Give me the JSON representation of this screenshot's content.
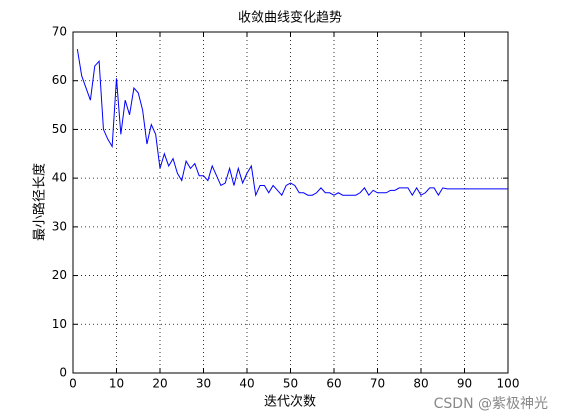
{
  "chart_data": {
    "type": "line",
    "title": "收敛曲线变化趋势",
    "xlabel": "迭代次数",
    "ylabel": "最小路径长度",
    "x": [
      1,
      2,
      3,
      4,
      5,
      6,
      7,
      8,
      9,
      10,
      11,
      12,
      13,
      14,
      15,
      16,
      17,
      18,
      19,
      20,
      21,
      22,
      23,
      24,
      25,
      26,
      27,
      28,
      29,
      30,
      31,
      32,
      33,
      34,
      35,
      36,
      37,
      38,
      39,
      40,
      41,
      42,
      43,
      44,
      45,
      46,
      47,
      48,
      49,
      50,
      51,
      52,
      53,
      54,
      55,
      56,
      57,
      58,
      59,
      60,
      61,
      62,
      63,
      64,
      65,
      66,
      67,
      68,
      69,
      70,
      71,
      72,
      73,
      74,
      75,
      76,
      77,
      78,
      79,
      80,
      81,
      82,
      83,
      84,
      85,
      86,
      87,
      88,
      89,
      90,
      91,
      92,
      93,
      94,
      95,
      96,
      97,
      98,
      99,
      100
    ],
    "series": [
      {
        "color": "#0000ff",
        "values": [
          66.5,
          61,
          58.5,
          56,
          63,
          64,
          50,
          48,
          46.5,
          60.5,
          49,
          56,
          53,
          58.5,
          57.5,
          54,
          47,
          51,
          49,
          42,
          45,
          42.5,
          44,
          41,
          39.5,
          43.5,
          42,
          43,
          40.5,
          40.5,
          39.5,
          42.5,
          40.5,
          38.5,
          39,
          42,
          38.5,
          42,
          39,
          41,
          42.5,
          36.5,
          38.5,
          38.5,
          37,
          38.5,
          37.5,
          36.5,
          38.5,
          39,
          38.5,
          37,
          37,
          36.5,
          36.5,
          37,
          38,
          37,
          37,
          36.5,
          37,
          36.5,
          36.5,
          36.5,
          36.5,
          37,
          38,
          36.5,
          37.5,
          37,
          37,
          37,
          37.5,
          37.5,
          38,
          38,
          38,
          36.5,
          38,
          36.5,
          37,
          38,
          38,
          36.5,
          38,
          37.8,
          37.8,
          37.8,
          37.8,
          37.8,
          37.8,
          37.8,
          37.8,
          37.8,
          37.8,
          37.8,
          37.8,
          37.8,
          37.8,
          37.8
        ]
      }
    ],
    "xlim": [
      0,
      100
    ],
    "xticks": [
      0,
      10,
      20,
      30,
      40,
      50,
      60,
      70,
      80,
      90,
      100
    ],
    "ylim": [
      0,
      70
    ],
    "yticks": [
      0,
      10,
      20,
      30,
      40,
      50,
      60,
      70
    ],
    "grid": true,
    "watermark": "CSDN @紫极神光"
  }
}
